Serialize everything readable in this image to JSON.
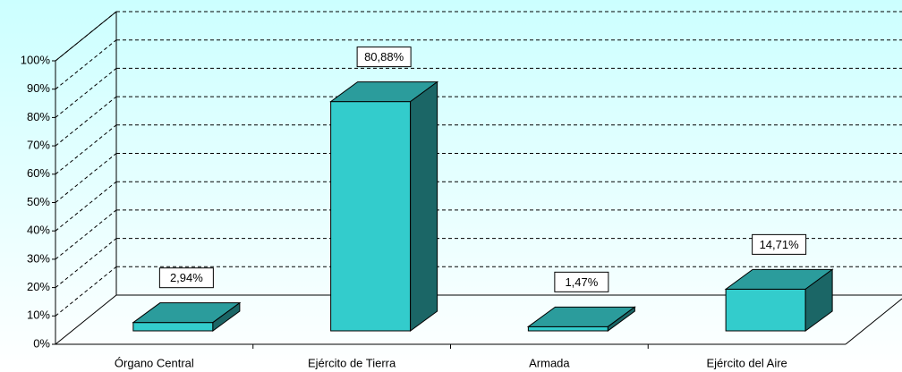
{
  "chart_data": {
    "type": "bar3d",
    "categories": [
      "Órgano Central",
      "Ejército de Tierra",
      "Armada",
      "Ejército del Aire"
    ],
    "values": [
      2.94,
      80.88,
      1.47,
      14.71
    ],
    "value_labels": [
      "2,94%",
      "80,88%",
      "1,47%",
      "14,71%"
    ],
    "colors": {
      "front": "#33cccc",
      "top": "#2b9c9c",
      "side": "#1b6666"
    },
    "ylim": [
      0,
      100
    ],
    "yticks": [
      {
        "value": 0,
        "label": "0%"
      },
      {
        "value": 10,
        "label": "10%"
      },
      {
        "value": 20,
        "label": "20%"
      },
      {
        "value": 30,
        "label": "30%"
      },
      {
        "value": 40,
        "label": "40%"
      },
      {
        "value": 50,
        "label": "50%"
      },
      {
        "value": 60,
        "label": "60%"
      },
      {
        "value": 70,
        "label": "70%"
      },
      {
        "value": 80,
        "label": "80%"
      },
      {
        "value": 90,
        "label": "90%"
      },
      {
        "value": 100,
        "label": "100%"
      }
    ],
    "grid": true
  }
}
